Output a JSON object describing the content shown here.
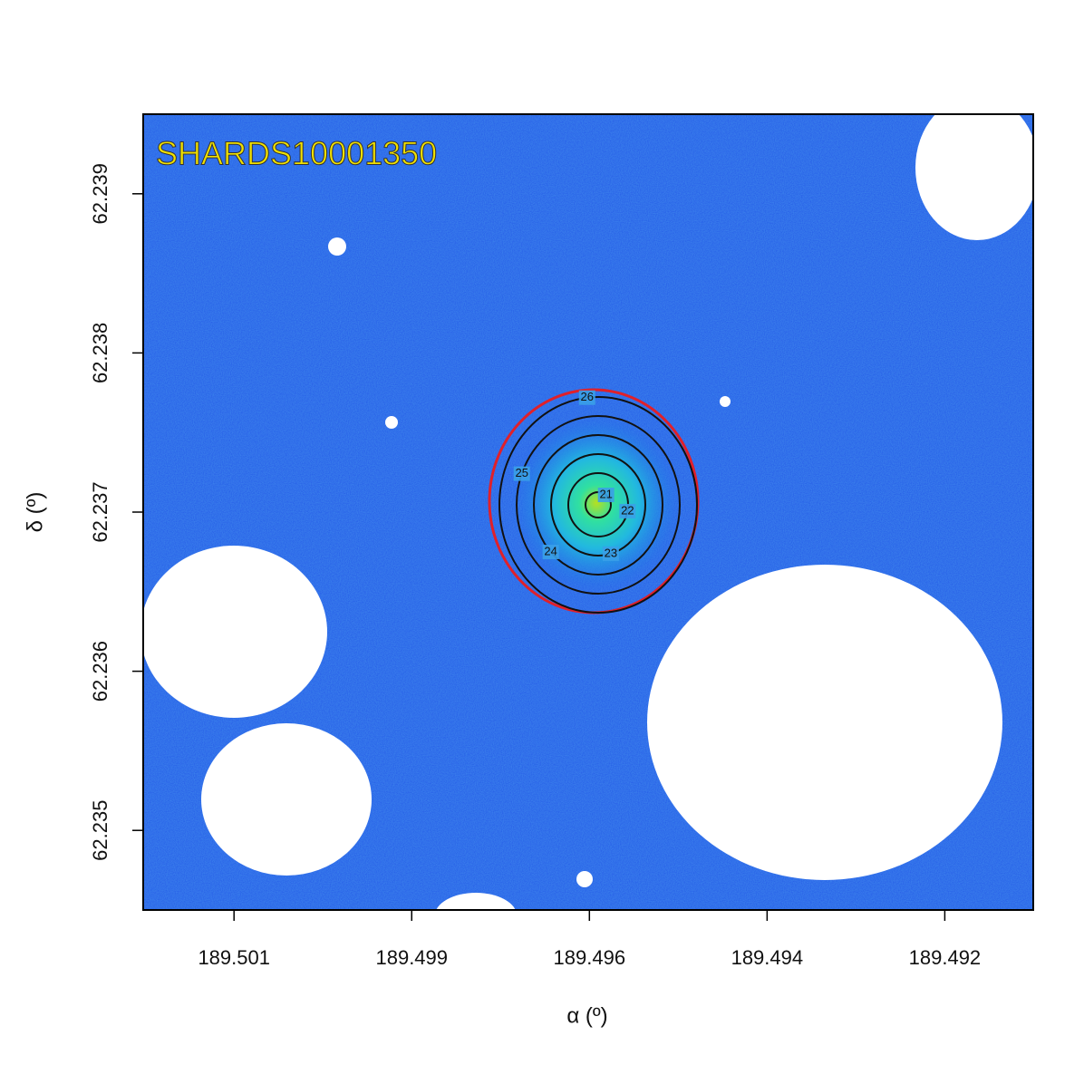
{
  "chart_data": {
    "type": "image",
    "title": "SHARDS10001350",
    "xlabel": "α (º)",
    "ylabel": "δ (º)",
    "xlim": [
      189.5021,
      189.49083
    ],
    "ylim": [
      62.2345,
      62.2395
    ],
    "xticks": [
      {
        "value": 189.50095,
        "label": "189.501"
      },
      {
        "value": 189.4987,
        "label": "189.499"
      },
      {
        "value": 189.49645,
        "label": "189.496"
      },
      {
        "value": 189.4942,
        "label": "189.494"
      },
      {
        "value": 189.49195,
        "label": "189.492"
      }
    ],
    "yticks": [
      62.235,
      62.236,
      62.237,
      62.238,
      62.239
    ],
    "contour_levels": [
      21,
      22,
      23,
      24,
      25,
      26
    ],
    "contour_color": "#111111"
  }
}
